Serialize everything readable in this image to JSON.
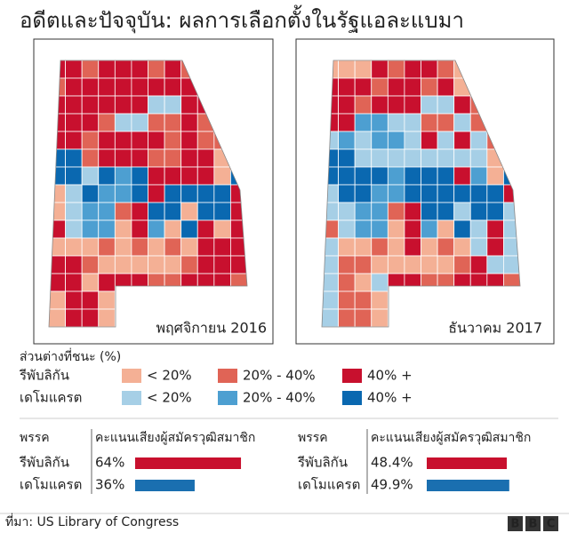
{
  "title": "อดีตและปัจจุบัน: ผลการเลือกตั้งในรัฐแอละแบมา",
  "maps": [
    {
      "label": "พฤศจิกายน 2016"
    },
    {
      "label": "ธันวาคม 2017"
    }
  ],
  "legend": {
    "title": "ส่วนต่างที่ชนะ (%)",
    "rows": [
      {
        "party": "รีพับลิกัน",
        "items": [
          {
            "label": "< 20%",
            "color": "#f4b095"
          },
          {
            "label": "20% - 40%",
            "color": "#e06456"
          },
          {
            "label": "40% +",
            "color": "#c8102e"
          }
        ]
      },
      {
        "party": "เดโมแครต",
        "items": [
          {
            "label": "< 20%",
            "color": "#a6cfe6"
          },
          {
            "label": "20% - 40%",
            "color": "#4d9fd1"
          },
          {
            "label": "40% +",
            "color": "#0a68b0"
          }
        ]
      }
    ]
  },
  "results": [
    {
      "party_header": "พรรค",
      "votes_header": "คะแนนเสียงผู้สมัครวุฒิสมาชิก",
      "rows": [
        {
          "party": "รีพับลิกัน",
          "value": 64,
          "value_label": "64%",
          "color": "#c8102e"
        },
        {
          "party": "เดโมแครต",
          "value": 36,
          "value_label": "36%",
          "color": "#1a6fb0"
        }
      ]
    },
    {
      "party_header": "พรรค",
      "votes_header": "คะแนนเสียงผู้สมัครวุฒิสมาชิก",
      "rows": [
        {
          "party": "รีพับลิกัน",
          "value": 48.4,
          "value_label": "48.4%",
          "color": "#c8102e"
        },
        {
          "party": "เดโมแครต",
          "value": 49.9,
          "value_label": "49.9%",
          "color": "#1a6fb0"
        }
      ]
    }
  ],
  "source": "ที่มา: US Library of Congress",
  "logo": "BBC"
}
